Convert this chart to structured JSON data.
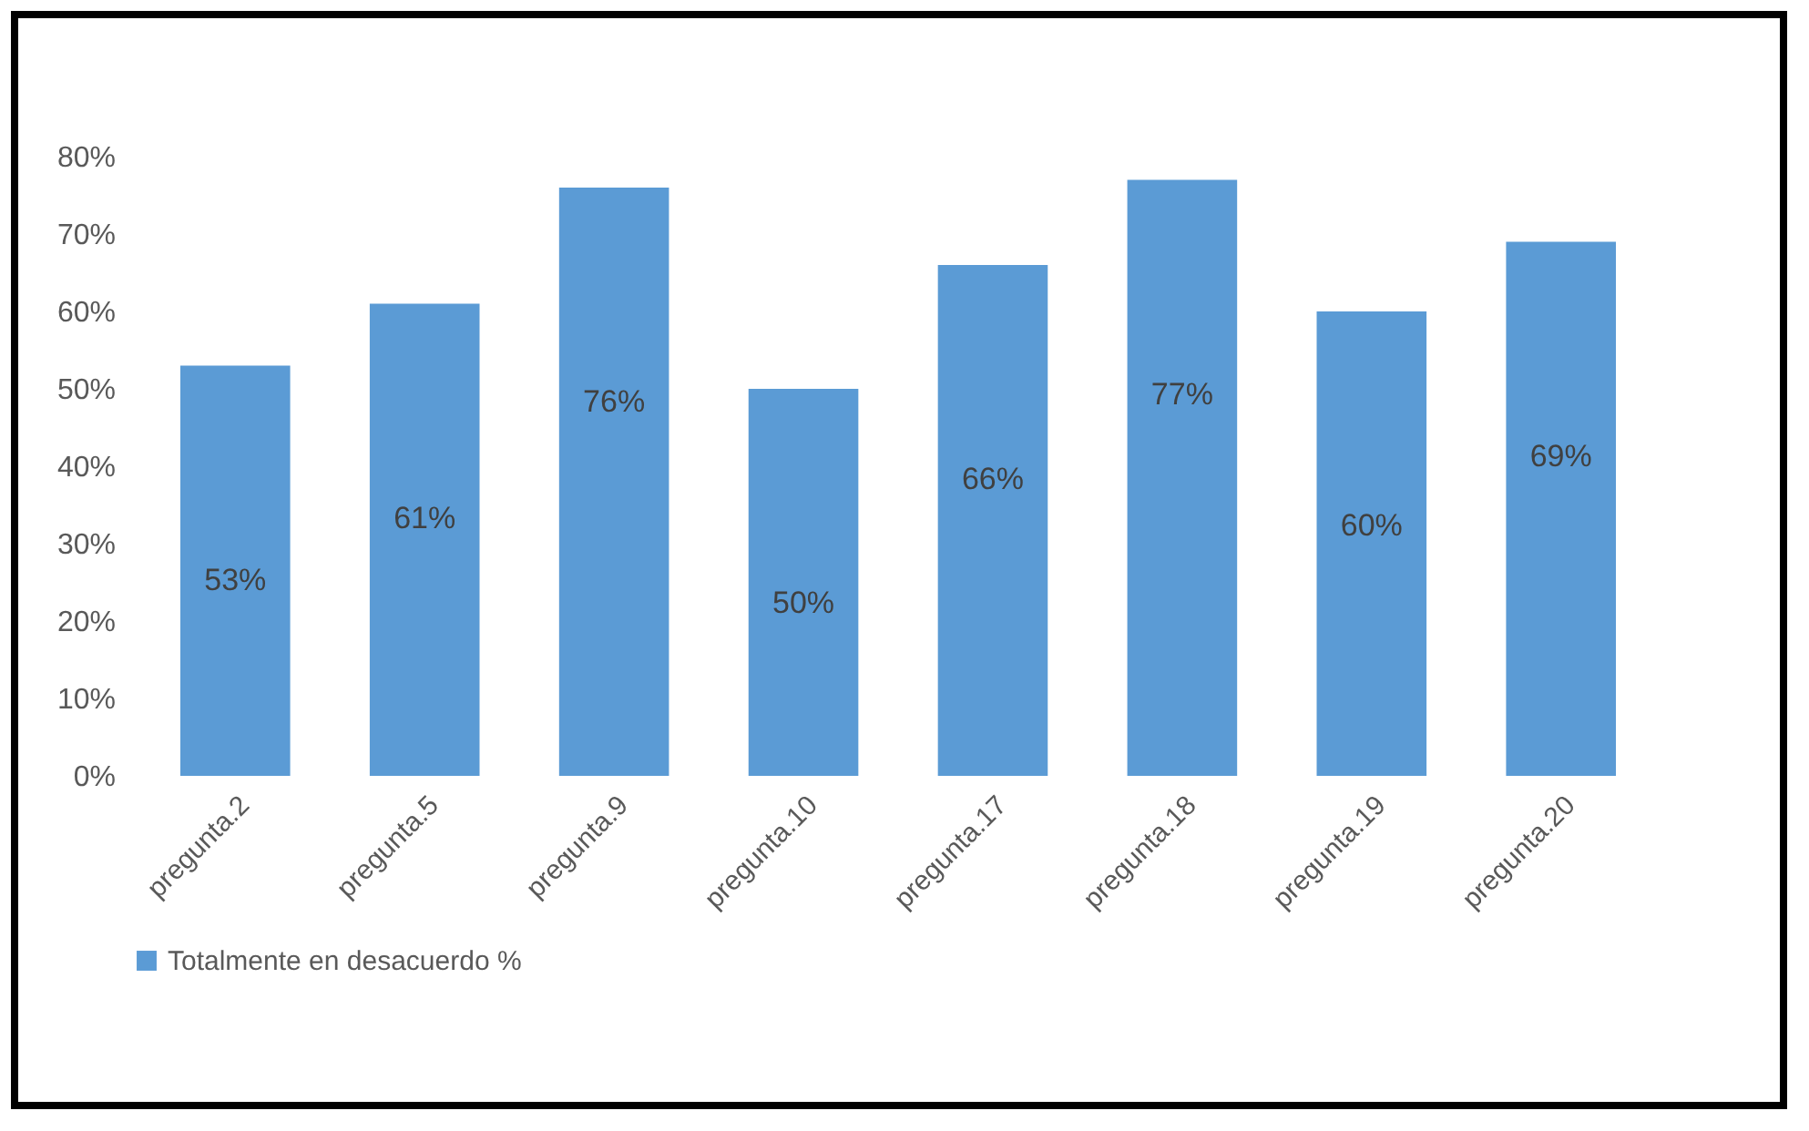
{
  "chart_data": {
    "type": "bar",
    "categories": [
      "pregunta.2",
      "pregunta.5",
      "pregunta.9",
      "pregunta.10",
      "pregunta.17",
      "pregunta.18",
      "pregunta.19",
      "pregunta.20"
    ],
    "series": [
      {
        "name": "Totalmente en desacuerdo %",
        "color": "#5b9bd5",
        "values": [
          53,
          61,
          76,
          50,
          66,
          77,
          60,
          69
        ],
        "value_labels": [
          "53%",
          "61%",
          "76%",
          "50%",
          "66%",
          "77%",
          "60%",
          "69%"
        ]
      }
    ],
    "ylim": [
      0,
      80
    ],
    "yticks": [
      {
        "value": 0,
        "label": "0%"
      },
      {
        "value": 10,
        "label": "10%"
      },
      {
        "value": 20,
        "label": "20%"
      },
      {
        "value": 30,
        "label": "30%"
      },
      {
        "value": 40,
        "label": "40%"
      },
      {
        "value": 50,
        "label": "50%"
      },
      {
        "value": 60,
        "label": "60%"
      },
      {
        "value": 70,
        "label": "70%"
      },
      {
        "value": 80,
        "label": "80%"
      }
    ],
    "grid": false,
    "legend": "bottom"
  }
}
